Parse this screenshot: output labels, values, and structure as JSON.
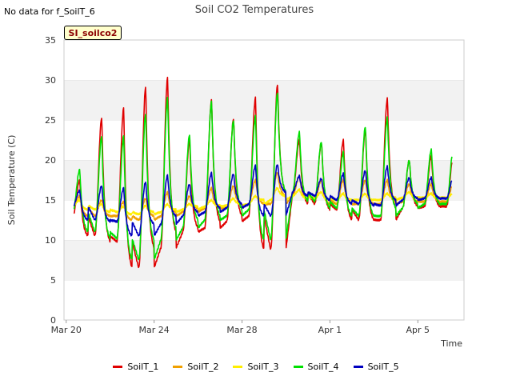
{
  "note": "No data for f_SoilT_6",
  "badge": "SI_soilco2",
  "chart_data": {
    "type": "line",
    "title": "Soil CO2 Temperatures",
    "xlabel": "Time",
    "ylabel": "Soil Temperature (C)",
    "ylim": [
      0,
      35
    ],
    "yticks": [
      0,
      5,
      10,
      15,
      20,
      25,
      30,
      35
    ],
    "xlim_days": [
      -0.1,
      18.1
    ],
    "xticks": [
      {
        "label": "Mar 20",
        "day": 0
      },
      {
        "label": "Mar 24",
        "day": 4
      },
      {
        "label": "Mar 28",
        "day": 8
      },
      {
        "label": "Apr 1",
        "day": 12
      },
      {
        "label": "Apr 5",
        "day": 16
      }
    ],
    "grid": "alternating horizontal bands",
    "legend_position": "bottom",
    "series": [
      {
        "name": "SoilT_1",
        "color": "#e00000",
        "peaks": [
          17.5,
          25.3,
          26.5,
          29.2,
          30.3,
          22.5,
          27.5,
          25.2,
          27.8,
          29.5,
          22.5,
          22.2,
          22.5,
          23.8,
          27.7,
          20.0,
          20.5
        ],
        "troughs": [
          13.0,
          10.5,
          9.8,
          6.5,
          9.0,
          11.0,
          11.5,
          12.3,
          13.0,
          8.8,
          15.8,
          14.5,
          13.8,
          12.5,
          12.5,
          14.0,
          14.2
        ]
      },
      {
        "name": "SoilT_2",
        "color": "#f0a000",
        "peaks": [
          15.5,
          15.0,
          14.8,
          15.2,
          16.0,
          15.5,
          16.5,
          16.8,
          17.5,
          18.5,
          18.0,
          17.5,
          17.5,
          17.5,
          17.5,
          17.0,
          17.0
        ],
        "troughs": [
          14.0,
          13.0,
          13.0,
          12.5,
          13.0,
          13.5,
          14.0,
          14.0,
          14.5,
          14.5,
          15.5,
          15.0,
          14.5,
          14.5,
          14.5,
          14.8,
          14.8
        ]
      },
      {
        "name": "SoilT_3",
        "color": "#ffee00",
        "peaks": [
          15.0,
          14.5,
          14.2,
          14.3,
          14.5,
          14.5,
          15.0,
          15.2,
          15.5,
          16.5,
          16.3,
          16.0,
          15.8,
          15.8,
          15.8,
          16.0,
          15.8
        ],
        "troughs": [
          14.3,
          13.8,
          13.5,
          13.2,
          13.5,
          13.8,
          14.2,
          14.3,
          14.5,
          15.0,
          15.5,
          15.2,
          15.0,
          15.0,
          15.0,
          15.3,
          15.3
        ]
      },
      {
        "name": "SoilT_4",
        "color": "#00e000",
        "peaks": [
          18.8,
          23.0,
          23.0,
          25.8,
          27.8,
          23.2,
          27.3,
          25.0,
          25.5,
          28.5,
          23.5,
          22.3,
          21.0,
          24.2,
          25.3,
          20.0,
          21.3
        ],
        "troughs": [
          13.5,
          11.0,
          10.2,
          7.5,
          10.0,
          11.5,
          12.5,
          13.0,
          13.8,
          10.0,
          16.0,
          14.8,
          14.0,
          13.0,
          13.0,
          14.0,
          14.5
        ]
      },
      {
        "name": "SoilT_5",
        "color": "#0000c0",
        "peaks": [
          16.2,
          16.8,
          16.5,
          17.3,
          18.1,
          17.0,
          18.4,
          18.3,
          19.3,
          19.5,
          18.0,
          17.7,
          18.3,
          18.7,
          19.2,
          17.8,
          17.8
        ],
        "troughs": [
          14.2,
          12.5,
          12.3,
          10.5,
          12.0,
          13.0,
          13.5,
          14.0,
          14.5,
          13.0,
          16.0,
          15.5,
          15.0,
          14.5,
          14.3,
          15.0,
          15.2
        ]
      }
    ]
  }
}
